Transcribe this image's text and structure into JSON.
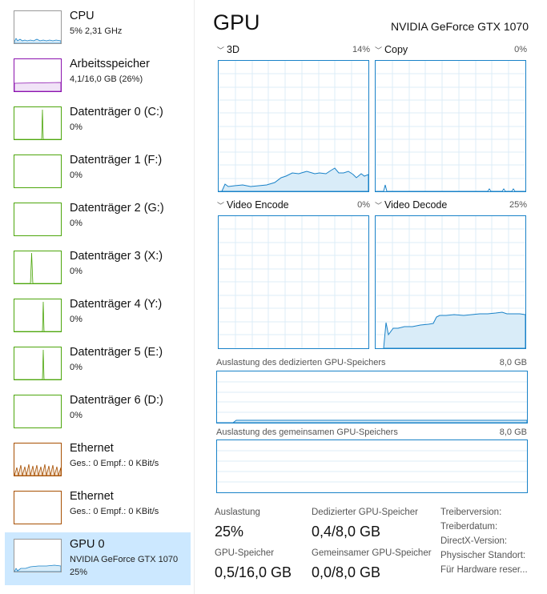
{
  "sidebar": {
    "items": [
      {
        "title": "CPU",
        "sub": "5% 2,31 GHz",
        "sub2": "",
        "color": "#1982c8",
        "selected": false
      },
      {
        "title": "Arbeitsspeicher",
        "sub": "4,1/16,0 GB (26%)",
        "sub2": "",
        "color": "#8b12ae",
        "selected": false
      },
      {
        "title": "Datenträger 0 (C:)",
        "sub": "0%",
        "sub2": "",
        "color": "#4da60c",
        "selected": false
      },
      {
        "title": "Datenträger 1 (F:)",
        "sub": "0%",
        "sub2": "",
        "color": "#4da60c",
        "selected": false
      },
      {
        "title": "Datenträger 2 (G:)",
        "sub": "0%",
        "sub2": "",
        "color": "#4da60c",
        "selected": false
      },
      {
        "title": "Datenträger 3 (X:)",
        "sub": "0%",
        "sub2": "",
        "color": "#4da60c",
        "selected": false
      },
      {
        "title": "Datenträger 4 (Y:)",
        "sub": "0%",
        "sub2": "",
        "color": "#4da60c",
        "selected": false
      },
      {
        "title": "Datenträger 5 (E:)",
        "sub": "0%",
        "sub2": "",
        "color": "#4da60c",
        "selected": false
      },
      {
        "title": "Datenträger 6 (D:)",
        "sub": "0%",
        "sub2": "",
        "color": "#4da60c",
        "selected": false
      },
      {
        "title": "Ethernet",
        "sub": "Ges.: 0 Empf.: 0 KBit/s",
        "sub2": "",
        "color": "#a74f01",
        "selected": false
      },
      {
        "title": "Ethernet",
        "sub": "Ges.: 0 Empf.: 0 KBit/s",
        "sub2": "",
        "color": "#a74f01",
        "selected": false
      },
      {
        "title": "GPU 0",
        "sub": "NVIDIA GeForce GTX 1070",
        "sub2": "25%",
        "color": "#1982c8",
        "selected": true
      }
    ]
  },
  "main": {
    "title": "GPU",
    "model": "NVIDIA GeForce GTX 1070",
    "graphs": [
      {
        "label": "3D",
        "pct": "14%"
      },
      {
        "label": "Copy",
        "pct": "0%"
      },
      {
        "label": "Video Encode",
        "pct": "0%"
      },
      {
        "label": "Video Decode",
        "pct": "25%"
      }
    ],
    "dedicated": {
      "label": "Auslastung des dedizierten GPU-Speichers",
      "max": "8,0 GB"
    },
    "shared": {
      "label": "Auslastung des gemeinsamen GPU-Speichers",
      "max": "8,0 GB"
    },
    "stats": {
      "auslastung_label": "Auslastung",
      "auslastung_value": "25%",
      "ded_label": "Dedizierter GPU-Speicher",
      "ded_value": "0,4/8,0 GB",
      "gpu_mem_label": "GPU-Speicher",
      "gpu_mem_value": "0,5/16,0 GB",
      "shared_label": "Gemeinsamer GPU-Speicher",
      "shared_value": "0,0/8,0 GB"
    },
    "info": [
      "Treiberversion:",
      "Treiberdatum:",
      "DirectX-Version:",
      "Physischer Standort:",
      "Für Hardware reser..."
    ]
  },
  "colors": {
    "accent": "#1982c8",
    "grid": "#dcecf7",
    "selected_bg": "#cce8ff"
  }
}
